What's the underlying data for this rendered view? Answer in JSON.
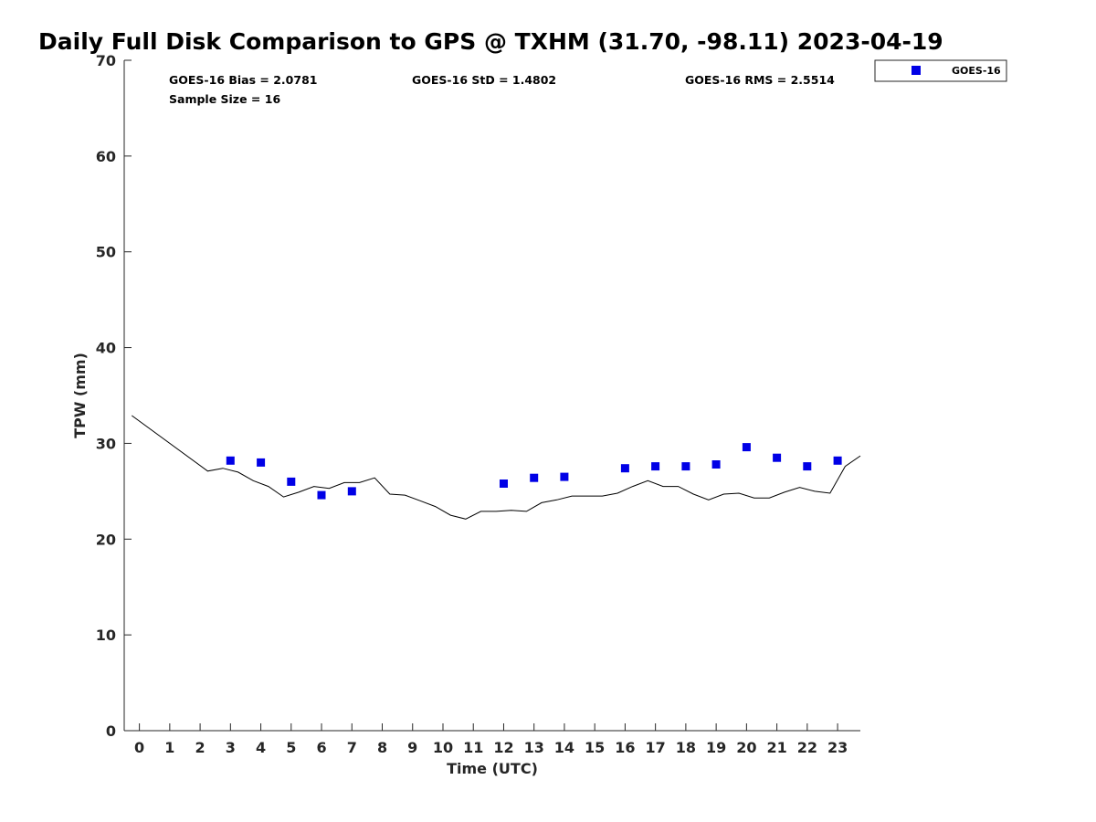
{
  "chart_data": {
    "type": "scatter",
    "title": "Daily Full Disk Comparison to GPS @ TXHM (31.70, -98.11) 2023-04-19",
    "xlabel": "Time (UTC)",
    "ylabel": "TPW (mm)",
    "xlim": [
      -0.5,
      23.75
    ],
    "ylim": [
      0,
      70
    ],
    "x_ticks": [
      0,
      1,
      2,
      3,
      4,
      5,
      6,
      7,
      8,
      9,
      10,
      11,
      12,
      13,
      14,
      15,
      16,
      17,
      18,
      19,
      20,
      21,
      22,
      23
    ],
    "x_tick_labels": [
      "0",
      "1",
      "2",
      "3",
      "4",
      "5",
      "6",
      "7",
      "8",
      "9",
      "10",
      "11",
      "12",
      "13",
      "14",
      "15",
      "16",
      "17",
      "18",
      "19",
      "20",
      "21",
      "22",
      "23"
    ],
    "y_ticks": [
      0,
      10,
      20,
      30,
      40,
      50,
      60,
      70
    ],
    "y_tick_labels": [
      "0",
      "10",
      "20",
      "30",
      "40",
      "50",
      "60",
      "70"
    ],
    "grid": false,
    "legend_position": "outside-top-right",
    "stats": {
      "bias": "GOES-16 Bias = 2.0781",
      "std": "GOES-16 StD = 1.4802",
      "rms": "GOES-16 RMS = 2.5514",
      "sample": "Sample Size = 16"
    },
    "series": [
      {
        "name": "",
        "kind": "line",
        "color": "#000000",
        "x": [
          -0.25,
          2.25,
          2.75,
          3.25,
          3.75,
          4.25,
          4.75,
          5.25,
          5.75,
          6.25,
          6.75,
          7.25,
          7.75,
          8.25,
          8.75,
          9.25,
          9.75,
          10.25,
          10.75,
          11.25,
          11.75,
          12.25,
          12.75,
          13.25,
          13.75,
          14.25,
          14.75,
          15.25,
          15.75,
          16.25,
          16.75,
          17.25,
          17.75,
          18.25,
          18.75,
          19.25,
          19.75,
          20.25,
          20.75,
          21.25,
          21.75,
          22.25,
          22.75,
          23.25,
          23.75
        ],
        "y": [
          32.9,
          27.1,
          27.4,
          27.0,
          26.1,
          25.5,
          24.4,
          24.9,
          25.5,
          25.3,
          25.9,
          25.9,
          26.4,
          24.7,
          24.6,
          24.0,
          23.4,
          22.5,
          22.1,
          22.9,
          22.9,
          23.0,
          22.9,
          23.8,
          24.1,
          24.5,
          24.5,
          24.5,
          24.8,
          25.5,
          26.1,
          25.5,
          25.5,
          24.7,
          24.1,
          24.7,
          24.8,
          24.3,
          24.3,
          24.9,
          25.4,
          25.0,
          24.8,
          27.6,
          28.7
        ]
      },
      {
        "name": "GOES-16",
        "kind": "scatter",
        "color": "#0000e6",
        "x": [
          3,
          4,
          5,
          6,
          7,
          12,
          13,
          14,
          16,
          17,
          18,
          19,
          20,
          21,
          22,
          23
        ],
        "y": [
          28.2,
          28.0,
          26.0,
          24.6,
          25.0,
          25.8,
          26.4,
          26.5,
          27.4,
          27.6,
          27.6,
          27.8,
          29.6,
          28.5,
          27.6,
          28.2
        ]
      }
    ]
  }
}
